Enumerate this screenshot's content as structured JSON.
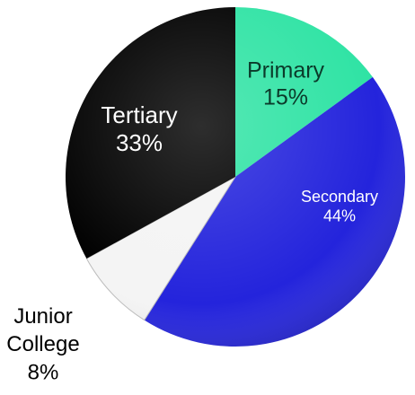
{
  "chart_data": {
    "type": "pie",
    "categories": [
      "Primary",
      "Secondary",
      "Junior College",
      "Tertiary"
    ],
    "values": [
      15,
      44,
      8,
      33
    ],
    "value_labels": [
      "15%",
      "44%",
      "8%",
      "33%"
    ],
    "colors": [
      "#2fe3a4",
      "#2424dc",
      "#f4f4f4",
      "#000000"
    ]
  }
}
